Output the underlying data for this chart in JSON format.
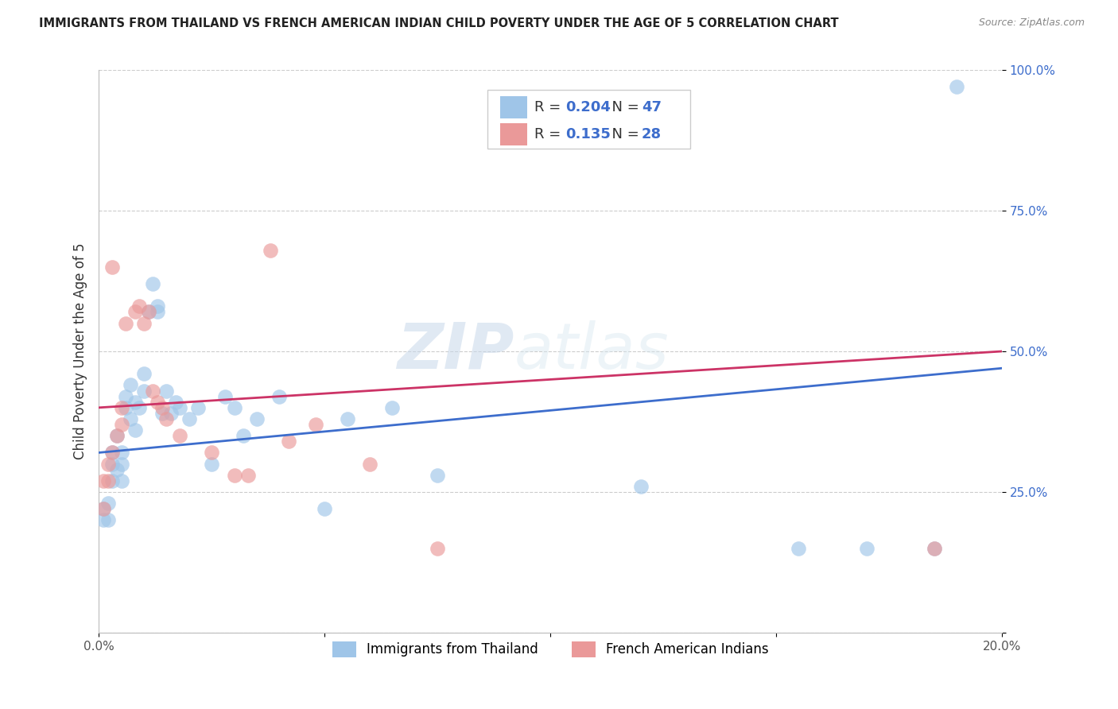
{
  "title": "IMMIGRANTS FROM THAILAND VS FRENCH AMERICAN INDIAN CHILD POVERTY UNDER THE AGE OF 5 CORRELATION CHART",
  "source": "Source: ZipAtlas.com",
  "ylabel": "Child Poverty Under the Age of 5",
  "xlim": [
    0.0,
    0.2
  ],
  "ylim": [
    0.0,
    1.0
  ],
  "legend_R1": "0.204",
  "legend_N1": "47",
  "legend_R2": "0.135",
  "legend_N2": "28",
  "legend_label1": "Immigrants from Thailand",
  "legend_label2": "French American Indians",
  "blue_color": "#9fc5e8",
  "pink_color": "#ea9999",
  "trend_blue": "#3d6dcc",
  "trend_pink": "#cc3366",
  "watermark_zip": "ZIP",
  "watermark_atlas": "atlas",
  "blue_x": [
    0.001,
    0.001,
    0.002,
    0.002,
    0.003,
    0.003,
    0.003,
    0.004,
    0.004,
    0.005,
    0.005,
    0.005,
    0.006,
    0.006,
    0.007,
    0.007,
    0.008,
    0.008,
    0.009,
    0.01,
    0.01,
    0.011,
    0.012,
    0.013,
    0.013,
    0.014,
    0.015,
    0.016,
    0.017,
    0.018,
    0.02,
    0.022,
    0.025,
    0.028,
    0.03,
    0.032,
    0.035,
    0.04,
    0.05,
    0.055,
    0.065,
    0.075,
    0.12,
    0.155,
    0.17,
    0.185,
    0.19
  ],
  "blue_y": [
    0.2,
    0.22,
    0.2,
    0.23,
    0.3,
    0.27,
    0.32,
    0.29,
    0.35,
    0.3,
    0.32,
    0.27,
    0.42,
    0.4,
    0.38,
    0.44,
    0.36,
    0.41,
    0.4,
    0.43,
    0.46,
    0.57,
    0.62,
    0.57,
    0.58,
    0.39,
    0.43,
    0.39,
    0.41,
    0.4,
    0.38,
    0.4,
    0.3,
    0.42,
    0.4,
    0.35,
    0.38,
    0.42,
    0.22,
    0.38,
    0.4,
    0.28,
    0.26,
    0.15,
    0.15,
    0.15,
    0.97
  ],
  "pink_x": [
    0.001,
    0.001,
    0.002,
    0.002,
    0.003,
    0.003,
    0.004,
    0.005,
    0.005,
    0.006,
    0.008,
    0.009,
    0.01,
    0.011,
    0.012,
    0.013,
    0.014,
    0.015,
    0.018,
    0.025,
    0.03,
    0.033,
    0.038,
    0.042,
    0.048,
    0.06,
    0.075,
    0.185
  ],
  "pink_y": [
    0.22,
    0.27,
    0.3,
    0.27,
    0.32,
    0.65,
    0.35,
    0.37,
    0.4,
    0.55,
    0.57,
    0.58,
    0.55,
    0.57,
    0.43,
    0.41,
    0.4,
    0.38,
    0.35,
    0.32,
    0.28,
    0.28,
    0.68,
    0.34,
    0.37,
    0.3,
    0.15,
    0.15
  ],
  "blue_trend_x": [
    0.0,
    0.2
  ],
  "blue_trend_y": [
    0.32,
    0.47
  ],
  "pink_trend_x": [
    0.0,
    0.2
  ],
  "pink_trend_y": [
    0.4,
    0.5
  ]
}
